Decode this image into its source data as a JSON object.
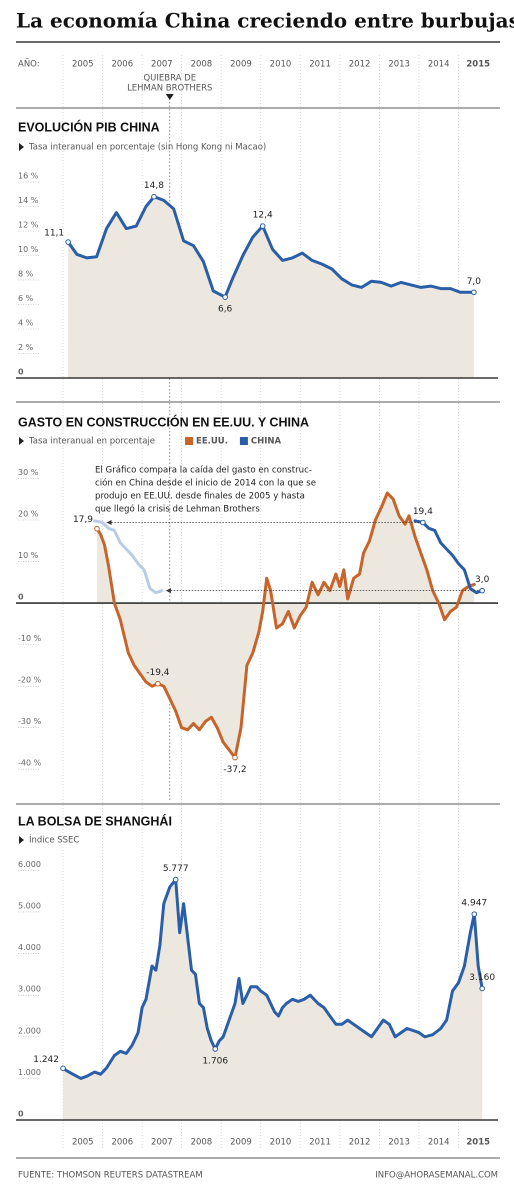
{
  "title": "La economía China creciendo entre burbujas",
  "x_axis": {
    "label": "AÑO:",
    "xlim": [
      2005,
      2016
    ],
    "xticks": [
      2005,
      2006,
      2007,
      2008,
      2009,
      2010,
      2011,
      2012,
      2013,
      2014,
      2015
    ]
  },
  "lehman": {
    "label": [
      "QUIEBRA DE",
      "LEHMAN BROTHERS"
    ],
    "x": 2007.7
  },
  "footer": {
    "source": "FUENTE: THOMSON REUTERS DATASTREAM",
    "contact": "INFO@AHORASEMANAL.COM"
  },
  "chart_data": [
    {
      "type": "line",
      "title": "EVOLUCIÓN PIB CHINA",
      "subtitle": "Tasa interanual en porcentaje (sin Hong Kong ni Macao)",
      "ylim": [
        0,
        16
      ],
      "yticks": [
        {
          "value": 16,
          "label": "16 %"
        },
        {
          "value": 14,
          "label": "14 %"
        },
        {
          "value": 12,
          "label": "12 %"
        },
        {
          "value": 10,
          "label": "10 %"
        },
        {
          "value": 8,
          "label": "8 %"
        },
        {
          "value": 6,
          "label": "6 %"
        },
        {
          "value": 4,
          "label": "4 %"
        },
        {
          "value": 2,
          "label": "2 %"
        },
        0
      ],
      "series": [
        {
          "color": "#2a5ea8",
          "fill": "#ece8df",
          "x": [
            2005.13,
            2005.35,
            2005.6,
            2005.85,
            2006.1,
            2006.35,
            2006.6,
            2006.85,
            2007.1,
            2007.3,
            2007.55,
            2007.8,
            2008.05,
            2008.3,
            2008.55,
            2008.8,
            2009.1,
            2009.3,
            2009.55,
            2009.8,
            2010.05,
            2010.3,
            2010.55,
            2010.8,
            2011.05,
            2011.3,
            2011.55,
            2011.8,
            2012.05,
            2012.3,
            2012.55,
            2012.8,
            2013.05,
            2013.3,
            2013.55,
            2013.8,
            2014.05,
            2014.3,
            2014.55,
            2014.8,
            2015.05,
            2015.39
          ],
          "values": [
            11.1,
            10.1,
            9.8,
            9.9,
            12.2,
            13.5,
            12.2,
            12.4,
            14.0,
            14.8,
            14.5,
            13.8,
            11.2,
            10.8,
            9.5,
            7.1,
            6.6,
            8.2,
            10.0,
            11.5,
            12.4,
            10.5,
            9.6,
            9.8,
            10.2,
            9.6,
            9.3,
            8.9,
            8.1,
            7.6,
            7.4,
            7.9,
            7.8,
            7.5,
            7.8,
            7.6,
            7.4,
            7.5,
            7.3,
            7.3,
            7.0,
            7.0
          ],
          "value_labels": [
            "11,1",
            null,
            null,
            null,
            null,
            null,
            null,
            null,
            null,
            "14,8",
            null,
            null,
            null,
            null,
            null,
            null,
            "6,6",
            null,
            null,
            null,
            "12,4",
            null,
            null,
            null,
            null,
            null,
            null,
            null,
            null,
            null,
            null,
            null,
            null,
            null,
            null,
            null,
            null,
            null,
            null,
            null,
            null,
            "7,0"
          ]
        }
      ]
    },
    {
      "type": "line",
      "title": "GASTO EN CONSTRUCCIÓN EN EE.UU. Y CHINA",
      "subtitle": "Tasa interanual en porcentaje",
      "note": [
        "El Gráfico compara la caída del gasto en construc-",
        "ción en China desde el inicio de 2014 con la que se",
        "produjo en EE.UU. desde finales de 2005 y hasta",
        "que llegó la crisis de Lehman Brothers"
      ],
      "ylim": [
        -45,
        33
      ],
      "yticks": [
        {
          "value": 30,
          "label": "30 %"
        },
        {
          "value": 20,
          "label": "20 %"
        },
        {
          "value": 10,
          "label": "10 %"
        },
        0,
        {
          "value": -10,
          "label": "-10 %"
        },
        {
          "value": -20,
          "label": "-20 %"
        },
        {
          "value": -30,
          "label": "-30 %"
        },
        {
          "value": -40,
          "label": "-40 %"
        }
      ],
      "series": [
        {
          "name": "EE.UU.",
          "color": "#c8642a",
          "fill": "#ece8df",
          "x": [
            2005.86,
            2005.95,
            2006.05,
            2006.15,
            2006.3,
            2006.45,
            2006.55,
            2006.65,
            2006.8,
            2006.95,
            2007.1,
            2007.25,
            2007.4,
            2007.55,
            2007.7,
            2007.85,
            2008.0,
            2008.15,
            2008.3,
            2008.45,
            2008.6,
            2008.75,
            2008.9,
            2009.05,
            2009.35,
            2009.5,
            2009.65,
            2009.8,
            2009.95,
            2010.05,
            2010.15,
            2010.25,
            2010.4,
            2010.55,
            2010.7,
            2010.85,
            2011.0,
            2011.15,
            2011.3,
            2011.45,
            2011.6,
            2011.75,
            2011.9,
            2012.0,
            2012.1,
            2012.2,
            2012.35,
            2012.5,
            2012.6,
            2012.75,
            2012.9,
            2013.05,
            2013.2,
            2013.35,
            2013.5,
            2013.65,
            2013.75,
            2013.9,
            2014.05,
            2014.2,
            2014.35,
            2014.5,
            2014.65,
            2014.8,
            2014.95,
            2015.1,
            2015.25,
            2015.4
          ],
          "values": [
            17.9,
            16.5,
            14,
            9,
            0,
            -4,
            -8,
            -12,
            -15,
            -17,
            -19,
            -20,
            -19.4,
            -20,
            -23,
            -26,
            -30,
            -30.5,
            -29,
            -30.5,
            -28.5,
            -27.5,
            -30,
            -33.5,
            -37.2,
            -30,
            -15,
            -12,
            -7,
            -2,
            6,
            3,
            -6,
            -5,
            -2,
            -6,
            -3,
            -1,
            5,
            2,
            5,
            3,
            7,
            4,
            8,
            1,
            6,
            7,
            12,
            15,
            20,
            23,
            26.5,
            25,
            21,
            19,
            21,
            16,
            12,
            8,
            3,
            0,
            -4,
            -2,
            -1,
            3,
            4,
            4.5
          ],
          "value_labels": [
            "17,9",
            null,
            null,
            null,
            null,
            null,
            null,
            null,
            null,
            null,
            null,
            null,
            "-19,4",
            null,
            null,
            null,
            null,
            null,
            null,
            null,
            null,
            null,
            null,
            null,
            "-37,2",
            null,
            null,
            null,
            null,
            null,
            null,
            null,
            null,
            null,
            null,
            null,
            null,
            null,
            null,
            null,
            null,
            null,
            null,
            null,
            null,
            null,
            null,
            null,
            null,
            null,
            null,
            null,
            null,
            null,
            null,
            null,
            null,
            null,
            null,
            null,
            null,
            null,
            null,
            null,
            null,
            null,
            null,
            null
          ]
        },
        {
          "name": "CHINA",
          "color": "#2a5ea8",
          "x": [
            2013.9,
            2014.1,
            2014.25,
            2014.4,
            2014.55,
            2014.7,
            2014.85,
            2015.0,
            2015.15,
            2015.3,
            2015.45,
            2015.6
          ],
          "values": [
            19.8,
            19.4,
            18.0,
            17.5,
            14.5,
            13.0,
            11.5,
            9.5,
            8.0,
            3.5,
            2.5,
            3.0
          ],
          "value_labels": [
            null,
            "19,4",
            null,
            null,
            null,
            null,
            null,
            null,
            null,
            null,
            null,
            "3,0"
          ]
        },
        {
          "color": "#b9cde6",
          "x": [
            2005.8,
            2006.0,
            2006.15,
            2006.3,
            2006.45,
            2006.6,
            2006.75,
            2006.9,
            2007.05,
            2007.2,
            2007.35,
            2007.5
          ],
          "values": [
            19.8,
            19.4,
            18.0,
            17.5,
            14.5,
            13.0,
            11.5,
            9.5,
            8.0,
            3.5,
            2.5,
            3.0
          ]
        }
      ]
    },
    {
      "type": "line",
      "title": "LA BOLSA DE SHANGHÁI",
      "subtitle": "Índice SSEC",
      "ylim": [
        0,
        6200
      ],
      "yticks": [
        {
          "value": 6000,
          "label": "6.000"
        },
        {
          "value": 5000,
          "label": "5.000"
        },
        {
          "value": 4000,
          "label": "4.000"
        },
        {
          "value": 3000,
          "label": "3.000"
        },
        {
          "value": 2000,
          "label": "2.000"
        },
        {
          "value": 1000,
          "label": "1.000"
        },
        0
      ],
      "series": [
        {
          "color": "#2a5ea8",
          "fill": "#ece8df",
          "x": [
            2005.0,
            2005.1,
            2005.25,
            2005.45,
            2005.6,
            2005.8,
            2005.95,
            2006.1,
            2006.3,
            2006.45,
            2006.6,
            2006.75,
            2006.9,
            2007.0,
            2007.1,
            2007.25,
            2007.35,
            2007.45,
            2007.55,
            2007.7,
            2007.85,
            2007.95,
            2008.05,
            2008.15,
            2008.25,
            2008.35,
            2008.45,
            2008.55,
            2008.65,
            2008.75,
            2008.85,
            2008.95,
            2009.05,
            2009.2,
            2009.35,
            2009.45,
            2009.55,
            2009.65,
            2009.75,
            2009.9,
            2010.0,
            2010.15,
            2010.25,
            2010.35,
            2010.45,
            2010.55,
            2010.65,
            2010.8,
            2010.95,
            2011.1,
            2011.25,
            2011.45,
            2011.6,
            2011.75,
            2011.9,
            2012.05,
            2012.2,
            2012.35,
            2012.5,
            2012.65,
            2012.8,
            2012.95,
            2013.1,
            2013.25,
            2013.4,
            2013.55,
            2013.7,
            2013.85,
            2014.0,
            2014.15,
            2014.35,
            2014.55,
            2014.7,
            2014.85,
            2015.0,
            2015.15,
            2015.3,
            2015.4,
            2015.5,
            2015.6
          ],
          "values": [
            1242,
            1180,
            1100,
            1000,
            1050,
            1150,
            1100,
            1250,
            1550,
            1650,
            1600,
            1800,
            2100,
            2700,
            2900,
            3700,
            3600,
            4200,
            5200,
            5600,
            5777,
            4500,
            5200,
            4400,
            3600,
            3500,
            2800,
            2700,
            2200,
            1900,
            1706,
            1900,
            2000,
            2400,
            2800,
            3400,
            2800,
            3000,
            3200,
            3200,
            3100,
            3000,
            2800,
            2600,
            2500,
            2700,
            2800,
            2900,
            2850,
            2900,
            3000,
            2800,
            2700,
            2500,
            2300,
            2300,
            2400,
            2300,
            2200,
            2100,
            2000,
            2200,
            2400,
            2300,
            2000,
            2100,
            2200,
            2150,
            2100,
            2000,
            2050,
            2200,
            2400,
            3100,
            3300,
            3700,
            4500,
            4947,
            3700,
            3160
          ],
          "value_labels": [
            "1.242",
            null,
            null,
            null,
            null,
            null,
            null,
            null,
            null,
            null,
            null,
            null,
            null,
            null,
            null,
            null,
            null,
            null,
            null,
            null,
            "5.777",
            null,
            null,
            null,
            null,
            null,
            null,
            null,
            null,
            null,
            "1.706",
            null,
            null,
            null,
            null,
            null,
            null,
            null,
            null,
            null,
            null,
            null,
            null,
            null,
            null,
            null,
            null,
            null,
            null,
            null,
            null,
            null,
            null,
            null,
            null,
            null,
            null,
            null,
            null,
            null,
            null,
            null,
            null,
            null,
            null,
            null,
            null,
            null,
            null,
            null,
            null,
            null,
            null,
            null,
            null,
            null,
            null,
            "4.947",
            null,
            "3.160"
          ]
        }
      ]
    }
  ]
}
